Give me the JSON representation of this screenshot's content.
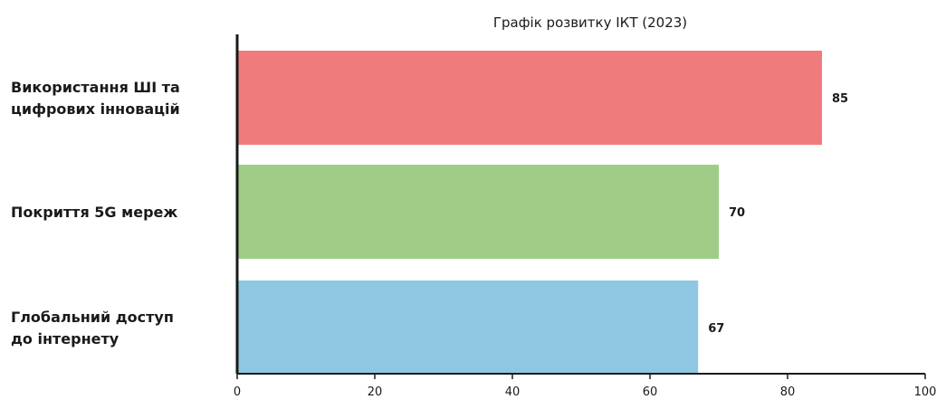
{
  "chart_data": {
    "type": "bar",
    "orientation": "horizontal",
    "title": "Графік розвитку ІКТ (2023)",
    "categories": [
      [
        "Використання ШІ та",
        "цифрових інновацій"
      ],
      [
        "Покриття 5G мереж"
      ],
      [
        "Глобальний доступ",
        "до інтернету"
      ]
    ],
    "values": [
      85,
      70,
      67
    ],
    "value_labels": [
      "85",
      "70",
      "67"
    ],
    "colors": [
      "#ef7b7d",
      "#9fcd87",
      "#8fc6e2"
    ],
    "xlim": [
      0,
      100
    ],
    "x_ticks": [
      0,
      20,
      40,
      60,
      80,
      100
    ],
    "grid": false,
    "legend": "none"
  }
}
